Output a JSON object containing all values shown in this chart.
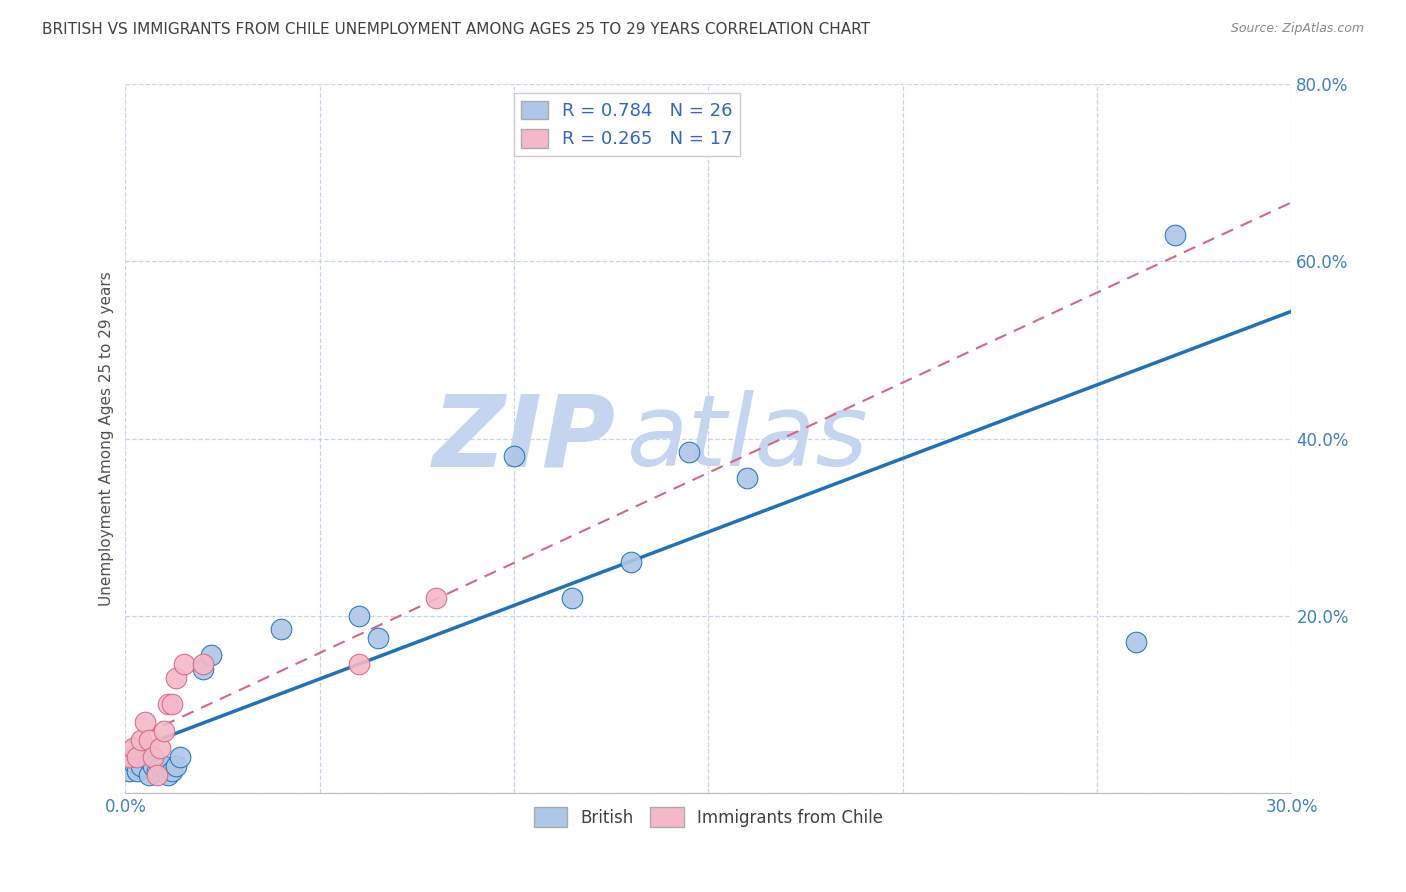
{
  "title": "BRITISH VS IMMIGRANTS FROM CHILE UNEMPLOYMENT AMONG AGES 25 TO 29 YEARS CORRELATION CHART",
  "source": "Source: ZipAtlas.com",
  "ylabel": "Unemployment Among Ages 25 to 29 years",
  "xlim": [
    0.0,
    0.3
  ],
  "ylim": [
    0.0,
    0.8
  ],
  "xticks": [
    0.0,
    0.05,
    0.1,
    0.15,
    0.2,
    0.25,
    0.3
  ],
  "yticks": [
    0.0,
    0.2,
    0.4,
    0.6,
    0.8
  ],
  "xticklabels": [
    "0.0%",
    "",
    "",
    "",
    "",
    "",
    "30.0%"
  ],
  "yticklabels": [
    "",
    "20.0%",
    "40.0%",
    "60.0%",
    "80.0%"
  ],
  "british_R": 0.784,
  "british_N": 26,
  "chile_R": 0.265,
  "chile_N": 17,
  "british_color": "#aec6e8",
  "british_line_color": "#2171b5",
  "chile_color": "#f4b8c8",
  "chile_line_color": "#d46880",
  "watermark_zip": "ZIP",
  "watermark_atlas": "atlas",
  "watermark_color": "#d0dff5",
  "british_x": [
    0.001,
    0.002,
    0.003,
    0.004,
    0.005,
    0.006,
    0.007,
    0.008,
    0.009,
    0.01,
    0.011,
    0.012,
    0.013,
    0.014,
    0.02,
    0.022,
    0.04,
    0.06,
    0.065,
    0.1,
    0.115,
    0.13,
    0.145,
    0.16,
    0.26,
    0.27
  ],
  "british_y": [
    0.025,
    0.035,
    0.025,
    0.03,
    0.04,
    0.02,
    0.03,
    0.025,
    0.03,
    0.03,
    0.02,
    0.025,
    0.03,
    0.04,
    0.14,
    0.155,
    0.185,
    0.2,
    0.175,
    0.38,
    0.22,
    0.26,
    0.385,
    0.355,
    0.17,
    0.63
  ],
  "chile_x": [
    0.001,
    0.002,
    0.003,
    0.004,
    0.005,
    0.006,
    0.007,
    0.008,
    0.009,
    0.01,
    0.011,
    0.012,
    0.013,
    0.015,
    0.02,
    0.06,
    0.08
  ],
  "chile_y": [
    0.04,
    0.05,
    0.04,
    0.06,
    0.08,
    0.06,
    0.04,
    0.02,
    0.05,
    0.07,
    0.1,
    0.1,
    0.13,
    0.145,
    0.145,
    0.145,
    0.22
  ],
  "background_color": "#ffffff",
  "grid_color": "#c8d4e8",
  "title_color": "#404040",
  "axis_label_color": "#505050",
  "tick_color": "#4080c0"
}
